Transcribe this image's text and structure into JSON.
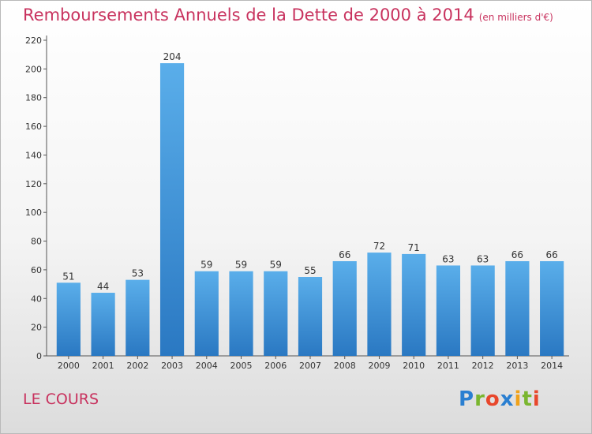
{
  "title": "Remboursements Annuels de la Dette de 2000 à 2014",
  "subtitle": "(en milliers d'€)",
  "commune": "LE COURS",
  "logo": {
    "letters": [
      "P",
      "r",
      "o",
      "x",
      "i",
      "t",
      "i"
    ],
    "colors": [
      "#2a7fd1",
      "#7ab62f",
      "#e8472c",
      "#2a7fd1",
      "#f0a21a",
      "#7ab62f",
      "#e8472c"
    ]
  },
  "chart_data": {
    "type": "bar",
    "title": "Remboursements Annuels de la Dette de 2000 à 2014",
    "subtitle": "(en milliers d'€)",
    "xlabel": "",
    "ylabel": "",
    "categories": [
      "2000",
      "2001",
      "2002",
      "2003",
      "2004",
      "2005",
      "2006",
      "2007",
      "2008",
      "2009",
      "2010",
      "2011",
      "2012",
      "2013",
      "2014"
    ],
    "values": [
      51,
      44,
      53,
      204,
      59,
      59,
      59,
      55,
      66,
      72,
      71,
      63,
      63,
      66,
      66
    ],
    "ylim": [
      0,
      220
    ],
    "yticks": [
      0,
      20,
      40,
      60,
      80,
      100,
      120,
      140,
      160,
      180,
      200,
      220
    ],
    "grid": false,
    "bar_color": "#3d8fd6"
  }
}
